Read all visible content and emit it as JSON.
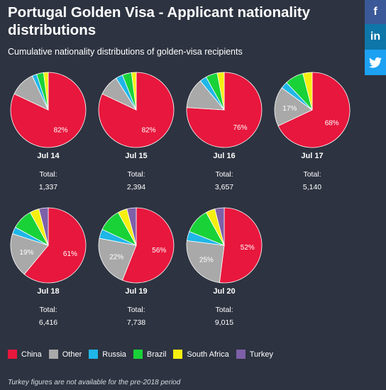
{
  "header": {
    "title": "Portugal Golden Visa - Applicant nationality distributions",
    "subtitle": "Cumulative nationality distributions of golden-visa recipients"
  },
  "share": {
    "facebook": "f",
    "linkedin": "in",
    "twitter_icon": "twitter-icon"
  },
  "colors": {
    "China": "#e8173d",
    "Other": "#a9a9a9",
    "Russia": "#1fb6e8",
    "Brazil": "#19d238",
    "South Africa": "#f5ef10",
    "Turkey": "#7e60a8",
    "background": "#2d3340"
  },
  "chart_data": {
    "type": "pie",
    "title": "Portugal Golden Visa - Applicant nationality distributions",
    "subtitle": "Cumulative nationality distributions of golden-visa recipients",
    "categories": [
      "China",
      "Other",
      "Russia",
      "Brazil",
      "South Africa",
      "Turkey"
    ],
    "total_label": "Total:",
    "pies": [
      {
        "label": "Jul 14",
        "total": "1,337",
        "values": [
          82,
          11,
          2,
          3,
          2,
          0
        ],
        "shown": {
          "China": "82%"
        }
      },
      {
        "label": "Jul 15",
        "total": "2,394",
        "values": [
          82,
          9,
          3,
          4,
          2,
          0
        ],
        "shown": {
          "China": "82%"
        }
      },
      {
        "label": "Jul 16",
        "total": "3,657",
        "values": [
          76,
          13,
          3,
          5,
          3,
          0
        ],
        "shown": {
          "China": "76%"
        }
      },
      {
        "label": "Jul 17",
        "total": "5,140",
        "values": [
          68,
          17,
          3,
          8,
          4,
          0
        ],
        "shown": {
          "China": "68%",
          "Other": "17%"
        }
      },
      {
        "label": "Jul 18",
        "total": "6,416",
        "values": [
          61,
          19,
          3,
          9,
          4,
          4
        ],
        "shown": {
          "China": "61%",
          "Other": "19%"
        }
      },
      {
        "label": "Jul 19",
        "total": "7,738",
        "values": [
          56,
          22,
          4,
          10,
          4,
          4
        ],
        "shown": {
          "China": "56%",
          "Other": "22%"
        }
      },
      {
        "label": "Jul 20",
        "total": "9,015",
        "values": [
          52,
          25,
          4,
          11,
          4,
          4
        ],
        "shown": {
          "China": "52%",
          "Other": "25%"
        }
      }
    ]
  },
  "legend": {
    "items": [
      "China",
      "Other",
      "Russia",
      "Brazil",
      "South Africa",
      "Turkey"
    ]
  },
  "footnote": "Turkey figures are not available for the pre-2018 period"
}
